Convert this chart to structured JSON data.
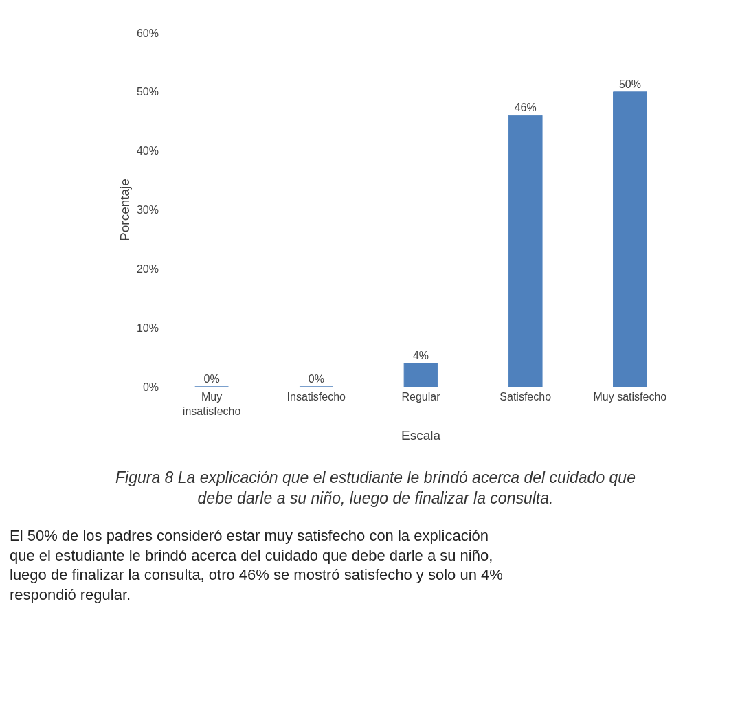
{
  "chart_data": {
    "type": "bar",
    "categories": [
      "Muy\ninsatisfecho",
      "Insatisfecho",
      "Regular",
      "Satisfecho",
      "Muy satisfecho"
    ],
    "values": [
      0,
      0,
      4,
      46,
      50
    ],
    "color": "#4f81bd",
    "value_labels": [
      "0%",
      "0%",
      "4%",
      "46%",
      "50%"
    ],
    "xlabel": "Escala",
    "ylabel": "Porcentaje",
    "ylim": [
      0,
      60
    ],
    "yticks": [
      {
        "value": 0,
        "label": "0%"
      },
      {
        "value": 10,
        "label": "10%"
      },
      {
        "value": 20,
        "label": "20%"
      },
      {
        "value": 30,
        "label": "30%"
      },
      {
        "value": 40,
        "label": "40%"
      },
      {
        "value": 50,
        "label": "50%"
      },
      {
        "value": 60,
        "label": "60%"
      }
    ],
    "annotations": [
      "Figura 8 La explicación que el estudiante le brindó acerca del cuidado que\ndebe darle a su niño, luego de finalizar la consulta.",
      "El 50% de los padres consideró estar muy satisfecho con la explicación\nque el estudiante le brindó acerca del cuidado que debe darle a su niño,\nluego de finalizar la consulta, otro 46% se mostró satisfecho y solo un 4%\nrespondió regular."
    ]
  }
}
